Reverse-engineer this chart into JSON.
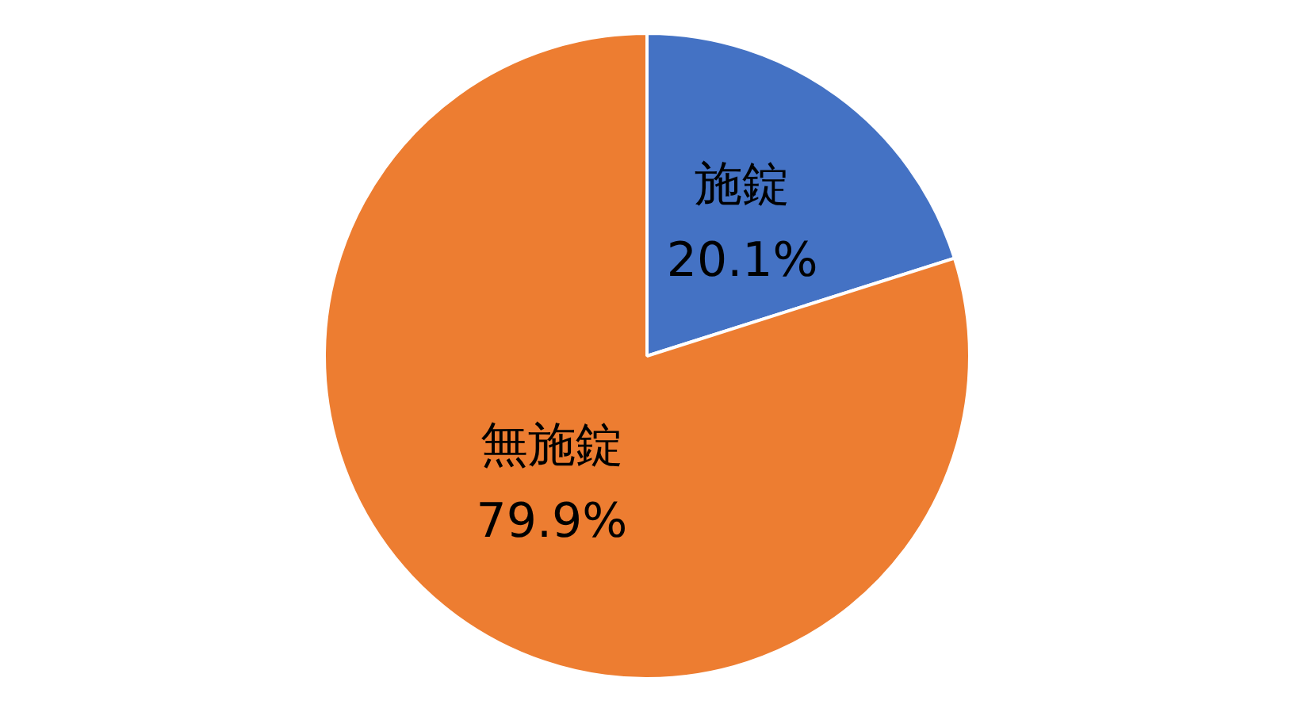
{
  "chart_data": {
    "type": "pie",
    "categories": [
      "施錠",
      "無施錠"
    ],
    "values": [
      20.1,
      79.9
    ],
    "colors": [
      "#4472c4",
      "#ed7d31"
    ],
    "value_labels": [
      "20.1%",
      "79.9%"
    ],
    "legend": false
  }
}
